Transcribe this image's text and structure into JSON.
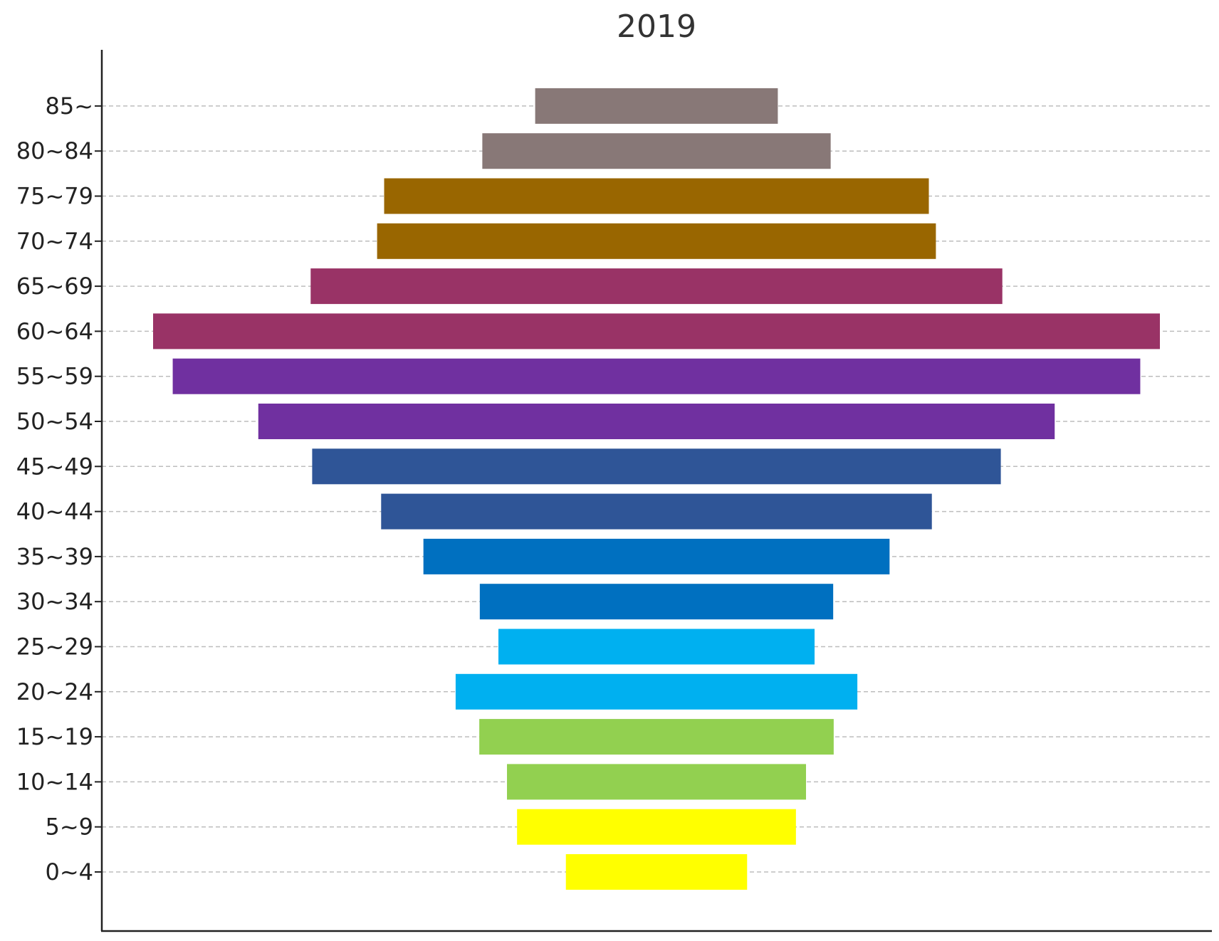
{
  "chart_data": {
    "type": "bar",
    "orientation": "horizontal",
    "layout": "centered",
    "title": "2019",
    "xlabel": "",
    "ylabel": "",
    "grid": "horizontal-dashed",
    "legend": "none",
    "categories": [
      "0~4",
      "5~9",
      "10~14",
      "15~19",
      "20~24",
      "25~29",
      "30~34",
      "35~39",
      "40~44",
      "45~49",
      "50~54",
      "55~59",
      "60~64",
      "65~69",
      "70~74",
      "75~79",
      "80~84",
      "85~"
    ],
    "values": [
      18.0,
      27.7,
      29.7,
      35.2,
      39.9,
      31.4,
      35.1,
      46.3,
      54.7,
      68.4,
      79.1,
      96.1,
      100.0,
      68.7,
      55.5,
      54.1,
      34.6,
      24.1
    ],
    "colors": [
      "#FFFF00",
      "#FFFF00",
      "#92D050",
      "#92D050",
      "#00B0F0",
      "#00B0F0",
      "#0070C0",
      "#0070C0",
      "#2F5597",
      "#2F5597",
      "#7030A0",
      "#7030A0",
      "#993366",
      "#993366",
      "#996600",
      "#996600",
      "#887877",
      "#887877"
    ]
  }
}
